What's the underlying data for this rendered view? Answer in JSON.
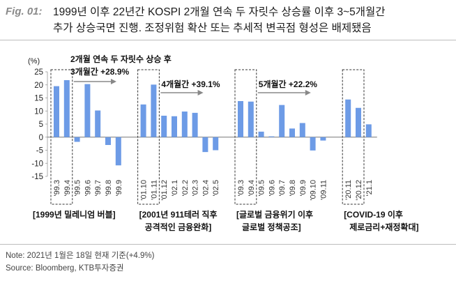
{
  "figure": {
    "label": "Fig. 01:",
    "title_line1": "1999년 이후 22년간 KOSPI 2개월 연속 두 자릿수 상승률 이후 3~5개월간",
    "title_line2": "추가 상승국면 진행. 조정위험 확산 또는 추세적 변곡점 형성은 배제됐음"
  },
  "notes": {
    "note": "Note: 2021년 1월은 18일 현재 기준(+4.9%)",
    "source": "Source: Bloomberg, KTB투자증권"
  },
  "chart_data": {
    "type": "bar",
    "unit_label": "(%)",
    "ylim": [
      -15,
      25
    ],
    "yticks": [
      25,
      20,
      15,
      10,
      5,
      0,
      -5,
      -10,
      -15
    ],
    "bar_color": "#6d9be6",
    "grid": false,
    "groups": [
      {
        "name": "[1999년 밀레니엄 버블]",
        "name_line2": "",
        "annotation": "2개월 연속 두 자릿수 상승 후",
        "annotation_line2": "3개월간 +28.9%",
        "categories": [
          "'99.3",
          "'99.4",
          "'99.5",
          "'99.6",
          "'99.7",
          "'99.8",
          "'99.9"
        ],
        "values": [
          19.5,
          21.8,
          -1.8,
          20.3,
          10.2,
          -3.0,
          -10.8
        ],
        "highlight_count": 2
      },
      {
        "name": "[2001년 911테러 직후",
        "name_line2": "공격적인 금융완화]",
        "annotation": "4개월간 +39.1%",
        "annotation_line2": "",
        "categories": [
          "'01.10",
          "'01.11",
          "'01.12",
          "'02.1",
          "'02.2",
          "'02.3",
          "'02.4",
          "'02.5"
        ],
        "values": [
          12.5,
          20.1,
          8.2,
          8.0,
          9.8,
          9.3,
          -5.7,
          -5.0
        ],
        "highlight_count": 2
      },
      {
        "name": "[글로벌 금융위기 이후",
        "name_line2": "글로벌 정책공조]",
        "annotation": "5개월간 +22.2%",
        "annotation_line2": "",
        "categories": [
          "'09.3",
          "'09.4",
          "'09.5",
          "'09.6",
          "'09.7",
          "'09.8",
          "'09.9",
          "'09.10",
          "'09.11"
        ],
        "values": [
          13.8,
          13.6,
          2.1,
          0.3,
          12.3,
          3.3,
          5.4,
          -5.1,
          -1.3
        ],
        "highlight_count": 2
      },
      {
        "name": "[COVID-19 이후",
        "name_line2": "제로금리+재정확대]",
        "annotation": "",
        "annotation_line2": "",
        "categories": [
          "'20.11",
          "'20.12",
          "'21.1"
        ],
        "values": [
          14.4,
          11.2,
          4.9
        ],
        "highlight_count": 2
      }
    ]
  }
}
